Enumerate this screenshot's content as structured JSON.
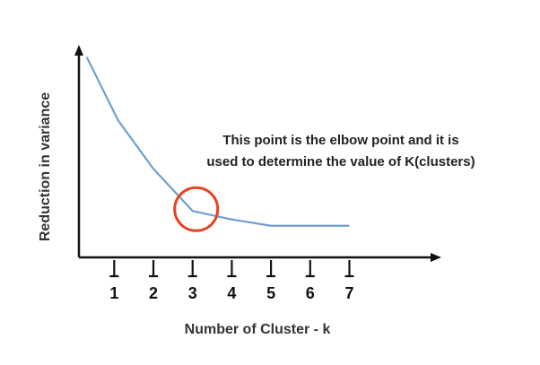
{
  "chart_data": {
    "type": "line",
    "title": "",
    "xlabel": "Number of Cluster - k",
    "ylabel": "Reduction in variance",
    "x_ticks": [
      "1",
      "2",
      "3",
      "4",
      "5",
      "6",
      "7"
    ],
    "xlim": [
      -0.9,
      8.3
    ],
    "ylim": [
      0,
      1
    ],
    "grid": false,
    "legend": "none",
    "series": [
      {
        "x": [
          -0.7,
          0.1,
          1.0,
          2.0,
          3.0,
          4.0,
          5.0,
          6.0
        ],
        "y": [
          0.95,
          0.65,
          0.42,
          0.22,
          0.18,
          0.15,
          0.15,
          0.15
        ]
      }
    ],
    "highlight": {
      "x": 2.0,
      "y": 0.22,
      "shape": "circle"
    },
    "annotation": {
      "line1": "This point is the elbow point and it is",
      "line2": "used to determine the value of K(clusters)"
    },
    "colors": {
      "line": "#6f9fcf",
      "highlight": "#e6421f",
      "axis": "#111111",
      "text": "#222222"
    }
  }
}
